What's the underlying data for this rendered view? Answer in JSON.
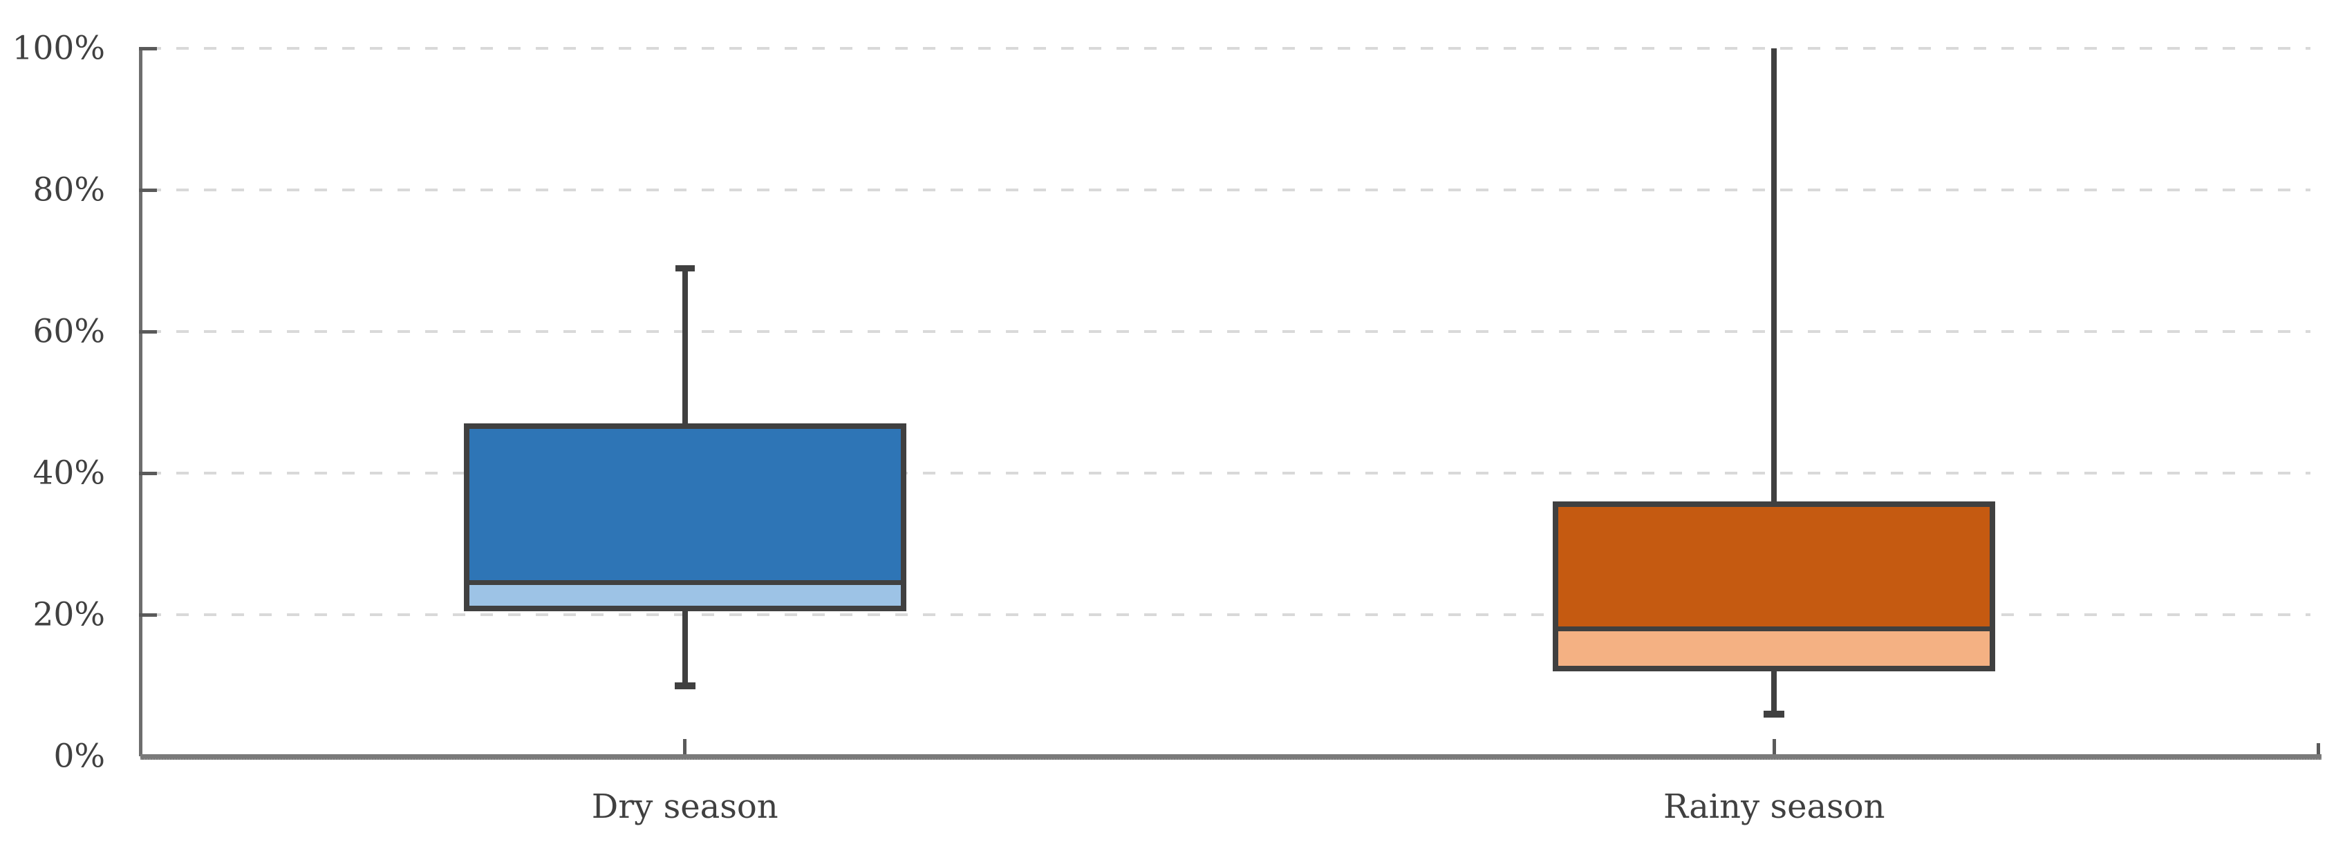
{
  "chart_data": {
    "type": "boxplot",
    "title": "",
    "xlabel": "",
    "ylabel": "",
    "categories": [
      "Dry season",
      "Rainy season"
    ],
    "series": [
      {
        "name": "Dry season",
        "min": 10,
        "q1": 20.5,
        "median": 24.5,
        "q3": 47,
        "max": 69,
        "fill_upper": "#2E75B6",
        "fill_lower": "#9DC3E6"
      },
      {
        "name": "Rainy season",
        "min": 6,
        "q1": 12,
        "median": 18,
        "q3": 36,
        "max": 100,
        "fill_upper": "#C55A11",
        "fill_lower": "#F4B183"
      }
    ],
    "yaxis": {
      "min": 0,
      "max": 100,
      "ticks": [
        0,
        20,
        40,
        60,
        80,
        100
      ],
      "tick_labels": [
        "0%",
        "20%",
        "40%",
        "60%",
        "80%",
        "100%"
      ],
      "format": "percent"
    },
    "gridlines_at": [
      20,
      40,
      60,
      80,
      100
    ],
    "grid_style": "dashed",
    "legend": {
      "visible": false
    },
    "colors": {
      "grid": "#D9D9D9",
      "box_border": "#404040",
      "whisker": "#404040",
      "axis_line": "#7A7A7A",
      "axis_tick": "#5A5A5A",
      "label_text": "#404040",
      "background": "#FFFFFF"
    }
  }
}
